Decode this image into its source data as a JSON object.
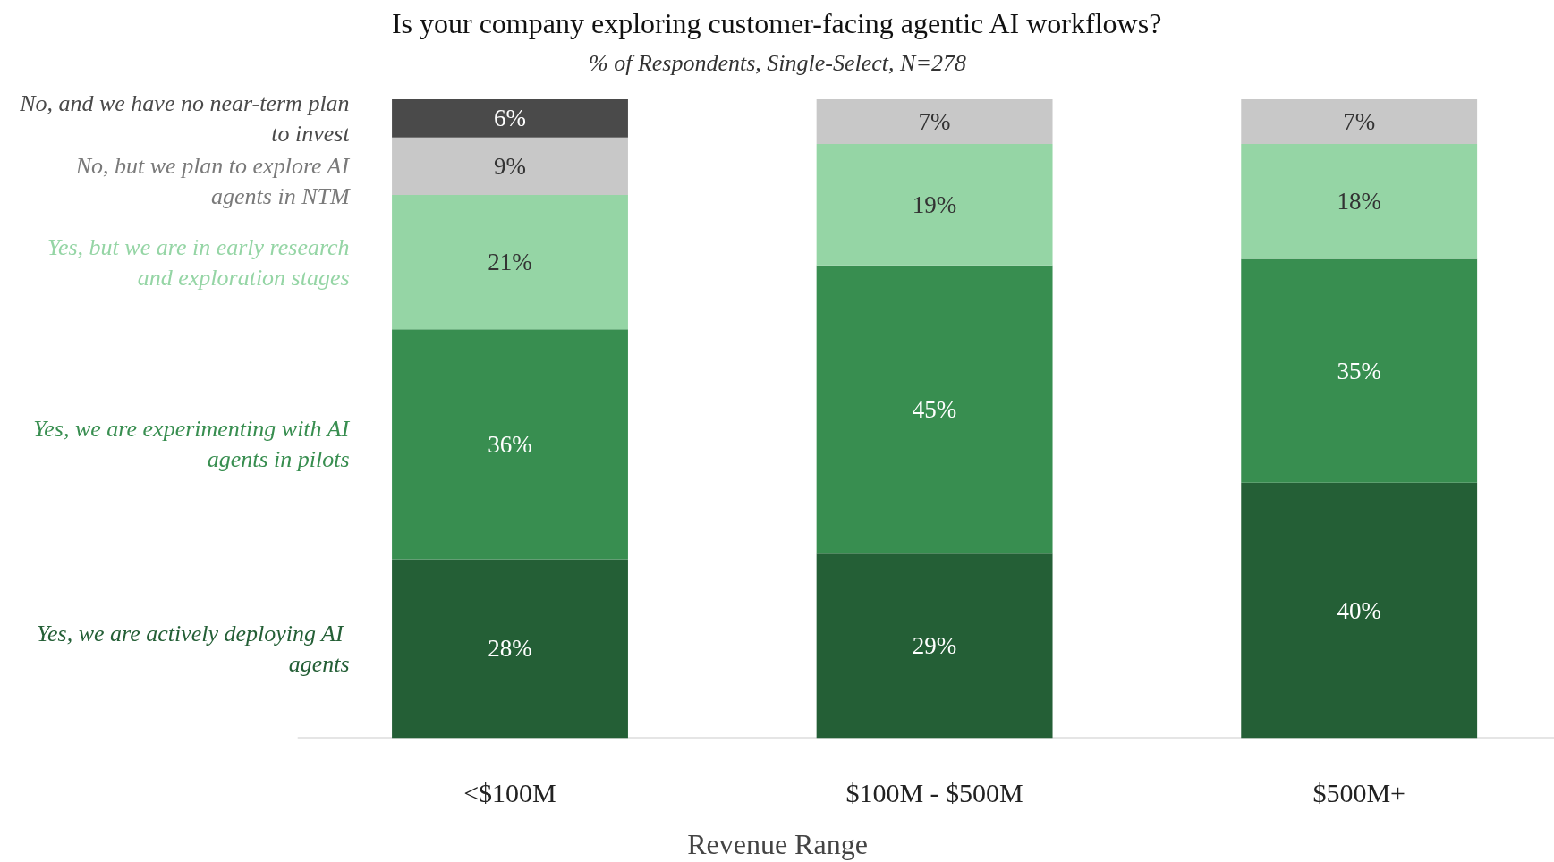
{
  "chart_data": {
    "type": "bar",
    "stacked": true,
    "title": "Is your company exploring customer-facing agentic AI workflows?",
    "subtitle": "% of Respondents, Single-Select, N=278",
    "xlabel": "Revenue Range",
    "categories": [
      "<$100M",
      "$100M - $500M",
      "$500M+"
    ],
    "series": [
      {
        "name": "Yes, we are actively  deploying AI agents",
        "color": "#245f36",
        "values": [
          28,
          29,
          40
        ],
        "value_labels": [
          "28%",
          "29%",
          "40%"
        ]
      },
      {
        "name": "Yes, we are experimenting with AI agents in pilots",
        "color": "#388e50",
        "values": [
          36,
          45,
          35
        ],
        "value_labels": [
          "36%",
          "45%",
          "35%"
        ]
      },
      {
        "name": "Yes, but we are in early research and exploration stages",
        "color": "#95d5a5",
        "values": [
          21,
          19,
          18
        ],
        "value_labels": [
          "21%",
          "19%",
          "18%"
        ]
      },
      {
        "name": "No, but we plan to explore AI agents in NTM",
        "color": "#c8c8c8",
        "values": [
          9,
          7,
          7
        ],
        "value_labels": [
          "9%",
          "7%",
          "7%"
        ]
      },
      {
        "name": "No, and we have no near-term plan to invest",
        "color": "#4a4a4a",
        "values": [
          6,
          null,
          null
        ],
        "value_labels": [
          "6%",
          null,
          null
        ]
      }
    ],
    "legend": "left",
    "grid": false
  }
}
